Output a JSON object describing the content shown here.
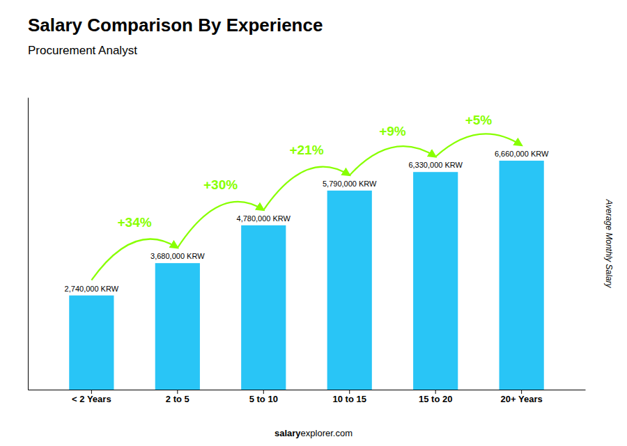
{
  "chart_data": {
    "type": "bar",
    "title": "Salary Comparison By Experience",
    "subtitle": "Procurement Analyst",
    "ylabel": "Average Monthly Salary",
    "footer": [
      "salary",
      "explorer.com"
    ],
    "categories": [
      "< 2 Years",
      "2 to 5",
      "5 to 10",
      "10 to 15",
      "15 to 20",
      "20+ Years"
    ],
    "values": [
      2740000,
      3680000,
      4780000,
      5790000,
      6330000,
      6660000
    ],
    "value_labels": [
      "2,740,000 KRW",
      "3,680,000 KRW",
      "4,780,000 KRW",
      "5,790,000 KRW",
      "6,330,000 KRW",
      "6,660,000 KRW"
    ],
    "data_labels": true,
    "color": "#29C5F6",
    "ylim": [
      0,
      8500000
    ],
    "yticks": [],
    "tick_labels": "x",
    "grid": false,
    "annotations": [
      {
        "text": "+34%",
        "color": "#88FF00"
      },
      {
        "text": "+30%",
        "color": "#88FF00"
      },
      {
        "text": "+21%",
        "color": "#88FF00"
      },
      {
        "text": "+9%",
        "color": "#88FF00"
      },
      {
        "text": "+5%",
        "color": "#88FF00"
      }
    ]
  }
}
